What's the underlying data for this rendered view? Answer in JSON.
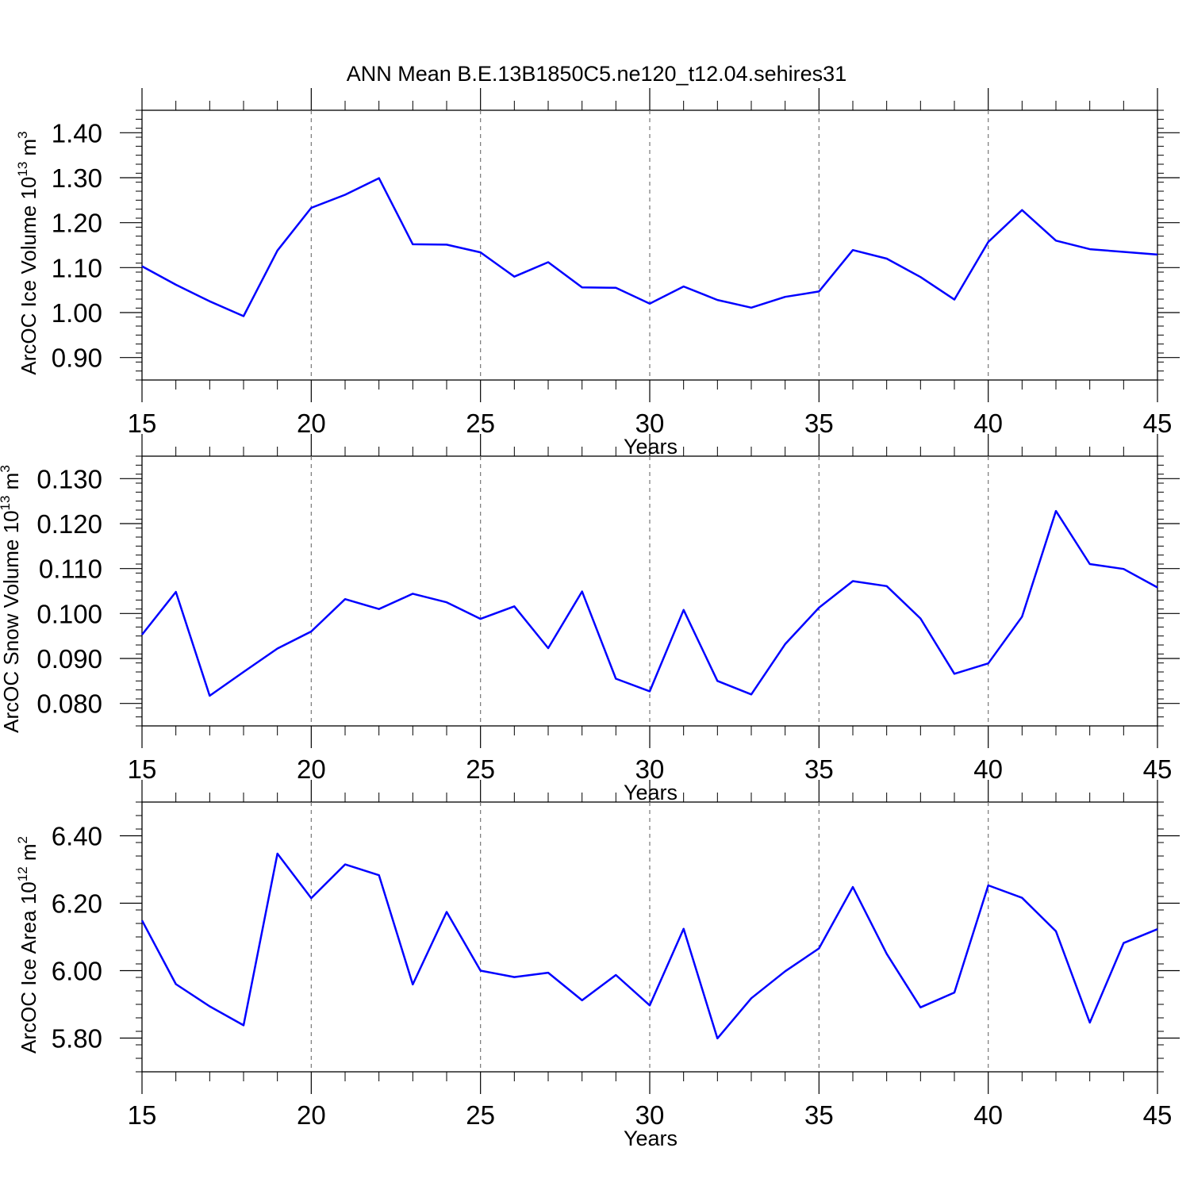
{
  "title": "ANN Mean B.E.13B1850C5.ne120_t12.04.sehires31",
  "series_color": "#0000ff",
  "chart_data": [
    {
      "type": "line",
      "ylabel": {
        "text": "ArcOC Ice Volume 10",
        "exp": "13",
        "unit": " m",
        "unit_exp": "3"
      },
      "xlabel": "Years",
      "xlim": [
        15,
        45
      ],
      "ylim": [
        0.85,
        1.45
      ],
      "xticks": [
        15,
        20,
        25,
        30,
        35,
        40,
        45
      ],
      "xtick_labels": [
        "15",
        "20",
        "25",
        "30",
        "35",
        "40",
        "45"
      ],
      "yticks": [
        0.9,
        1.0,
        1.1,
        1.2,
        1.3,
        1.4
      ],
      "ytick_labels": [
        "0.90",
        "1.00",
        "1.10",
        "1.20",
        "1.30",
        "1.40"
      ],
      "yminor_step": 0.02,
      "grid": "vertical dashed at major x ticks",
      "x": [
        15,
        16,
        17,
        18,
        19,
        20,
        21,
        22,
        23,
        24,
        25,
        26,
        27,
        28,
        29,
        30,
        31,
        32,
        33,
        34,
        35,
        36,
        37,
        38,
        39,
        40,
        41,
        42,
        43,
        44,
        45
      ],
      "values": [
        1.103,
        1.062,
        1.025,
        0.992,
        1.138,
        1.233,
        1.262,
        1.299,
        1.152,
        1.151,
        1.134,
        1.08,
        1.112,
        1.056,
        1.055,
        1.02,
        1.058,
        1.028,
        1.011,
        1.035,
        1.047,
        1.139,
        1.12,
        1.079,
        1.029,
        1.157,
        1.228,
        1.16,
        1.141,
        1.135,
        1.129
      ]
    },
    {
      "type": "line",
      "ylabel": {
        "text": "ArcOC Snow Volume 10",
        "exp": "13",
        "unit": " m",
        "unit_exp": "3"
      },
      "xlabel": "Years",
      "xlim": [
        15,
        45
      ],
      "ylim": [
        0.075,
        0.135
      ],
      "xticks": [
        15,
        20,
        25,
        30,
        35,
        40,
        45
      ],
      "xtick_labels": [
        "15",
        "20",
        "25",
        "30",
        "35",
        "40",
        "45"
      ],
      "yticks": [
        0.08,
        0.09,
        0.1,
        0.11,
        0.12,
        0.13
      ],
      "ytick_labels": [
        "0.080",
        "0.090",
        "0.100",
        "0.110",
        "0.120",
        "0.130"
      ],
      "yminor_step": 0.002,
      "grid": "vertical dashed at major x ticks",
      "x": [
        15,
        16,
        17,
        18,
        19,
        20,
        21,
        22,
        23,
        24,
        25,
        26,
        27,
        28,
        29,
        30,
        31,
        32,
        33,
        34,
        35,
        36,
        37,
        38,
        39,
        40,
        41,
        42,
        43,
        44,
        45
      ],
      "values": [
        0.0953,
        0.1048,
        0.0817,
        0.087,
        0.0922,
        0.096,
        0.1032,
        0.101,
        0.1044,
        0.1025,
        0.0988,
        0.1016,
        0.0923,
        0.1049,
        0.0855,
        0.0827,
        0.1008,
        0.085,
        0.082,
        0.0932,
        0.1013,
        0.1072,
        0.1061,
        0.0989,
        0.0866,
        0.0889,
        0.0993,
        0.1228,
        0.111,
        0.1099,
        0.1058
      ]
    },
    {
      "type": "line",
      "ylabel": {
        "text": "ArcOC Ice Area 10",
        "exp": "12",
        "unit": " m",
        "unit_exp": "2"
      },
      "xlabel": "Years",
      "xlim": [
        15,
        45
      ],
      "ylim": [
        5.7,
        6.5
      ],
      "xticks": [
        15,
        20,
        25,
        30,
        35,
        40,
        45
      ],
      "xtick_labels": [
        "15",
        "20",
        "25",
        "30",
        "35",
        "40",
        "45"
      ],
      "yticks": [
        5.8,
        6.0,
        6.2,
        6.4
      ],
      "ytick_labels": [
        "5.80",
        "6.00",
        "6.20",
        "6.40"
      ],
      "yminor_step": 0.04,
      "grid": "vertical dashed at major x ticks",
      "x": [
        15,
        16,
        17,
        18,
        19,
        20,
        21,
        22,
        23,
        24,
        25,
        26,
        27,
        28,
        29,
        30,
        31,
        32,
        33,
        34,
        35,
        36,
        37,
        38,
        39,
        40,
        41,
        42,
        43,
        44,
        45
      ],
      "values": [
        6.149,
        5.96,
        5.894,
        5.838,
        6.347,
        6.215,
        6.315,
        6.283,
        5.959,
        6.174,
        6.0,
        5.981,
        5.994,
        5.912,
        5.987,
        5.897,
        6.124,
        5.799,
        5.918,
        5.998,
        6.066,
        6.248,
        6.05,
        5.891,
        5.935,
        6.253,
        6.216,
        6.117,
        5.846,
        6.082,
        6.123
      ]
    }
  ]
}
